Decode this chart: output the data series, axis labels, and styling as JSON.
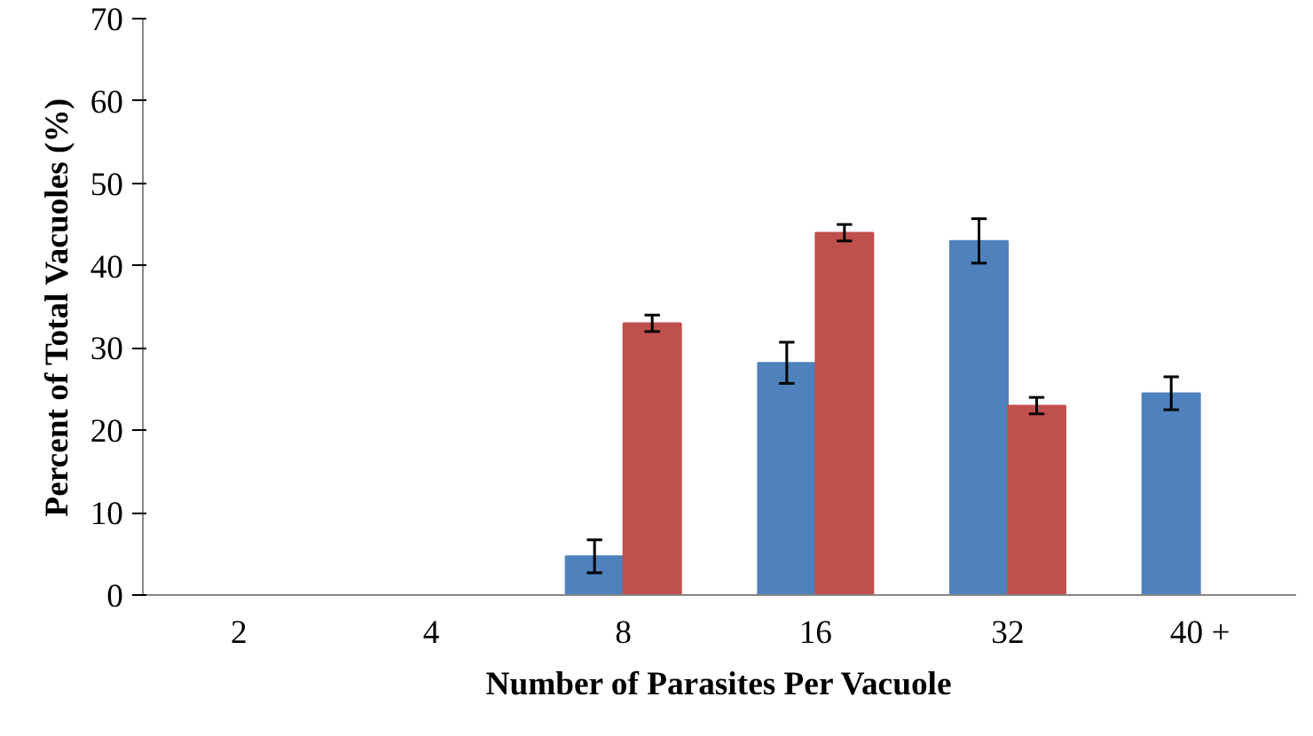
{
  "chart_data": {
    "type": "bar",
    "xlabel": "Number of Parasites Per Vacuole",
    "ylabel": "Percent of Total Vacuoles (%)",
    "categories": [
      "2",
      "4",
      "8",
      "16",
      "32",
      "40 +"
    ],
    "series": [
      {
        "color": "#4f81bd",
        "values": [
          null,
          null,
          4.7,
          28.2,
          43,
          24.5
        ],
        "errors": [
          null,
          null,
          2,
          2.5,
          2.7,
          2
        ]
      },
      {
        "color": "#c0504d",
        "values": [
          null,
          null,
          33,
          44,
          23,
          null
        ],
        "errors": [
          null,
          null,
          1,
          1,
          1,
          null
        ]
      }
    ],
    "ylim": [
      0,
      70
    ],
    "yticks": [
      0,
      10,
      20,
      30,
      40,
      50,
      60,
      70
    ],
    "grid": false
  }
}
